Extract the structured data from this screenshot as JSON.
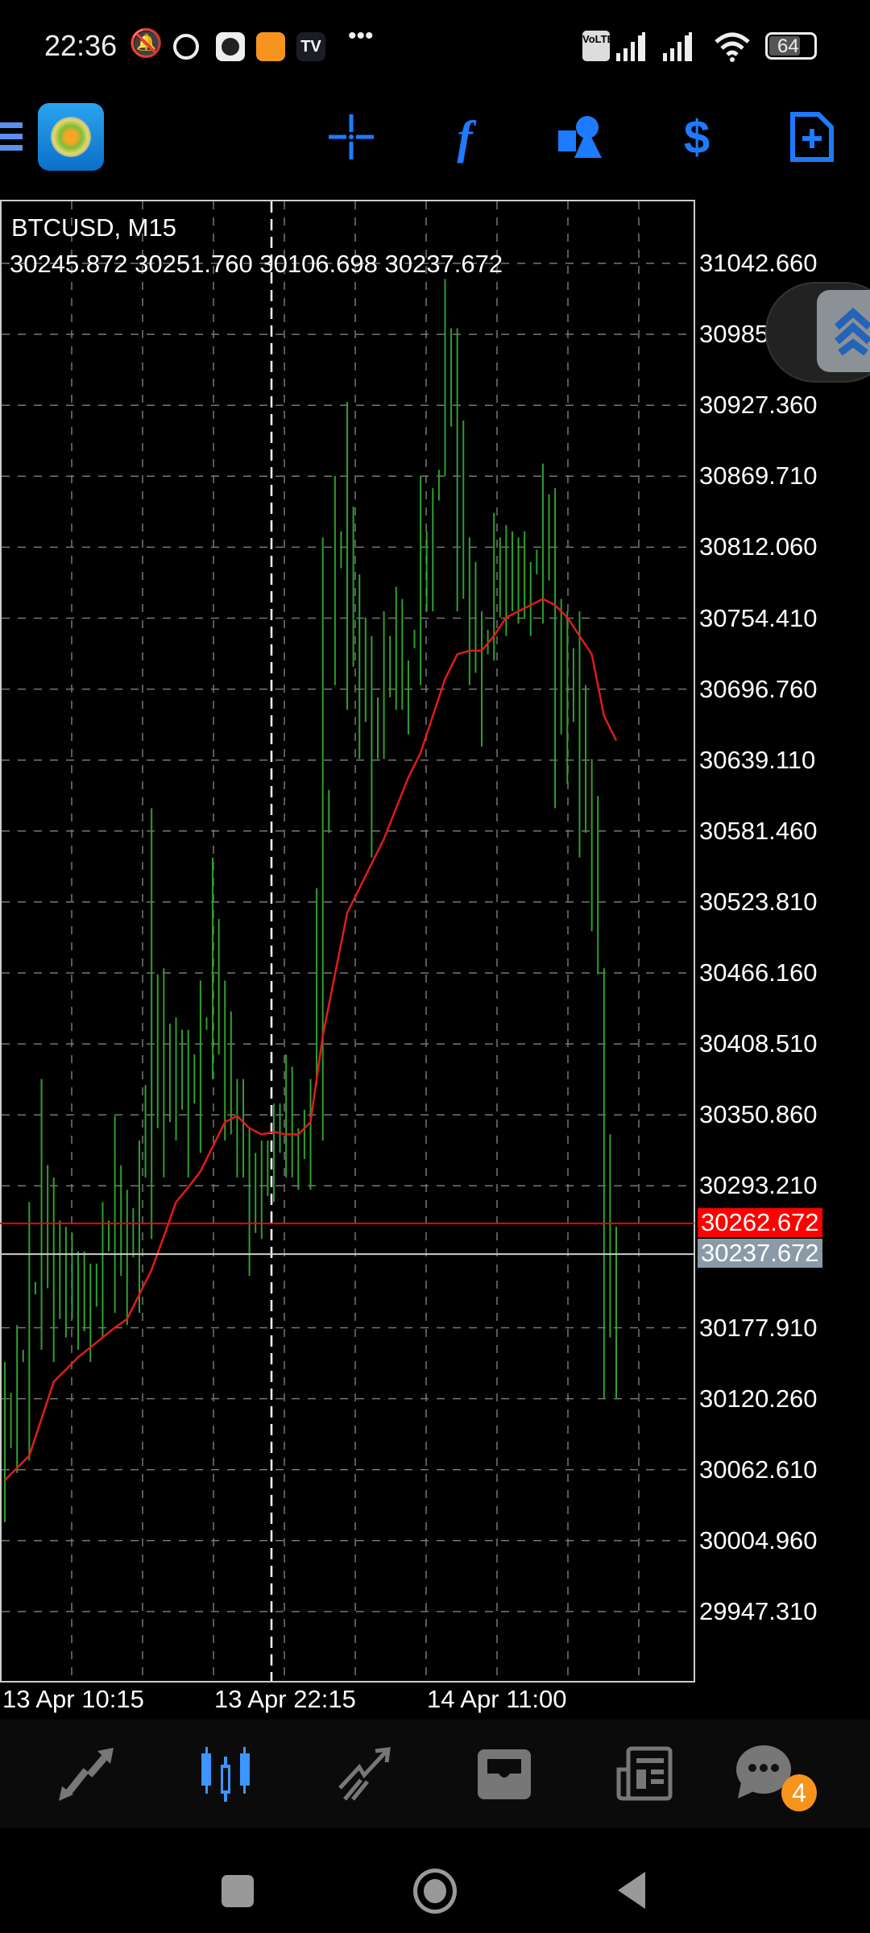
{
  "status_bar": {
    "time": "22:36",
    "battery": "64",
    "network": "VoLTE",
    "icons": [
      "mute-icon",
      "alarm-icon",
      "clock-app-icon",
      "orange-app-icon",
      "tradingview-icon",
      "more-icon",
      "signal-icon",
      "signal-icon",
      "wifi-icon",
      "battery-icon"
    ]
  },
  "toolbar": {
    "icons": [
      "menu-icon",
      "metatrader4-logo",
      "crosshair-icon",
      "indicator-f-icon",
      "objects-icon",
      "symbol-swap-icon",
      "new-order-icon"
    ],
    "accent": "#1e7bff"
  },
  "chart": {
    "symbol": "BTCUSD, M15",
    "ohlc": [
      "30245.872",
      "30251.760",
      "30106.698",
      "30237.672"
    ],
    "price_labels": [
      "31042.660",
      "30985.010",
      "30927.360",
      "30869.710",
      "30812.060",
      "30754.410",
      "30696.760",
      "30639.110",
      "30581.460",
      "30523.810",
      "30466.160",
      "30408.510",
      "30350.860",
      "30293.210",
      "30177.910",
      "30120.260",
      "30062.610",
      "30004.960",
      "29947.310"
    ],
    "bid_label": "30262.672",
    "bid_color": "#ff0000",
    "current_label": "30237.672",
    "current_color": "#8a9aa8",
    "date_labels": [
      "13 Apr 10:15",
      "13 Apr 22:15",
      "14 Apr 11:00"
    ]
  },
  "chart_data": {
    "type": "bar",
    "title": "BTCUSD, M15",
    "ylim": [
      29900,
      31080
    ],
    "x_ticks": [
      "13 Apr 10:15",
      "13 Apr 22:15",
      "14 Apr 11:00"
    ],
    "grid": true,
    "bar_color": "#2ea02e",
    "ma_color": "#e01b1b",
    "high": [
      30150,
      30180,
      30280,
      30380,
      30300,
      30260,
      30240,
      30230,
      30280,
      30350,
      30290,
      30330,
      30600,
      30470,
      30430,
      30420,
      30460,
      30560,
      30460,
      30380,
      30340,
      30330,
      30360,
      30400,
      30340,
      30380,
      30820,
      30870,
      30930,
      30790,
      30740,
      30760,
      30780,
      30720,
      30870,
      30860,
      31030,
      30990,
      30820,
      30760,
      30840,
      30830,
      30820,
      30800,
      30880,
      30860,
      30760,
      30760,
      30640,
      30470,
      30260
    ],
    "low": [
      30020,
      30060,
      30070,
      30160,
      30150,
      30170,
      30160,
      30150,
      30170,
      30190,
      30180,
      30190,
      30250,
      30300,
      30330,
      30300,
      30320,
      30380,
      30330,
      30300,
      30220,
      30250,
      30280,
      30300,
      30290,
      30290,
      30330,
      30700,
      30680,
      30640,
      30560,
      30640,
      30680,
      30660,
      30700,
      30760,
      30870,
      30760,
      30700,
      30650,
      30720,
      30740,
      30750,
      30740,
      30750,
      30600,
      30620,
      30560,
      30500,
      30120,
      30120
    ],
    "ma": [
      30054,
      30064,
      30074,
      30104,
      30134,
      30144,
      30154,
      30162,
      30170,
      30178,
      30185,
      30205,
      30225,
      30252,
      30280,
      30292,
      30305,
      30325,
      30345,
      30350,
      30340,
      30335,
      30337,
      30335,
      30335,
      30345,
      30415,
      30465,
      30515,
      30535,
      30555,
      30575,
      30600,
      30625,
      30645,
      30675,
      30705,
      30725,
      30728,
      30728,
      30740,
      30755,
      30760,
      30765,
      30770,
      30765,
      30755,
      30740,
      30725,
      30675,
      30655
    ]
  },
  "bottom_nav": {
    "items": [
      "quotes",
      "chart",
      "trade",
      "history",
      "news",
      "messages"
    ],
    "active": "chart",
    "messages_badge": "4",
    "badge_color": "#f7941d"
  }
}
